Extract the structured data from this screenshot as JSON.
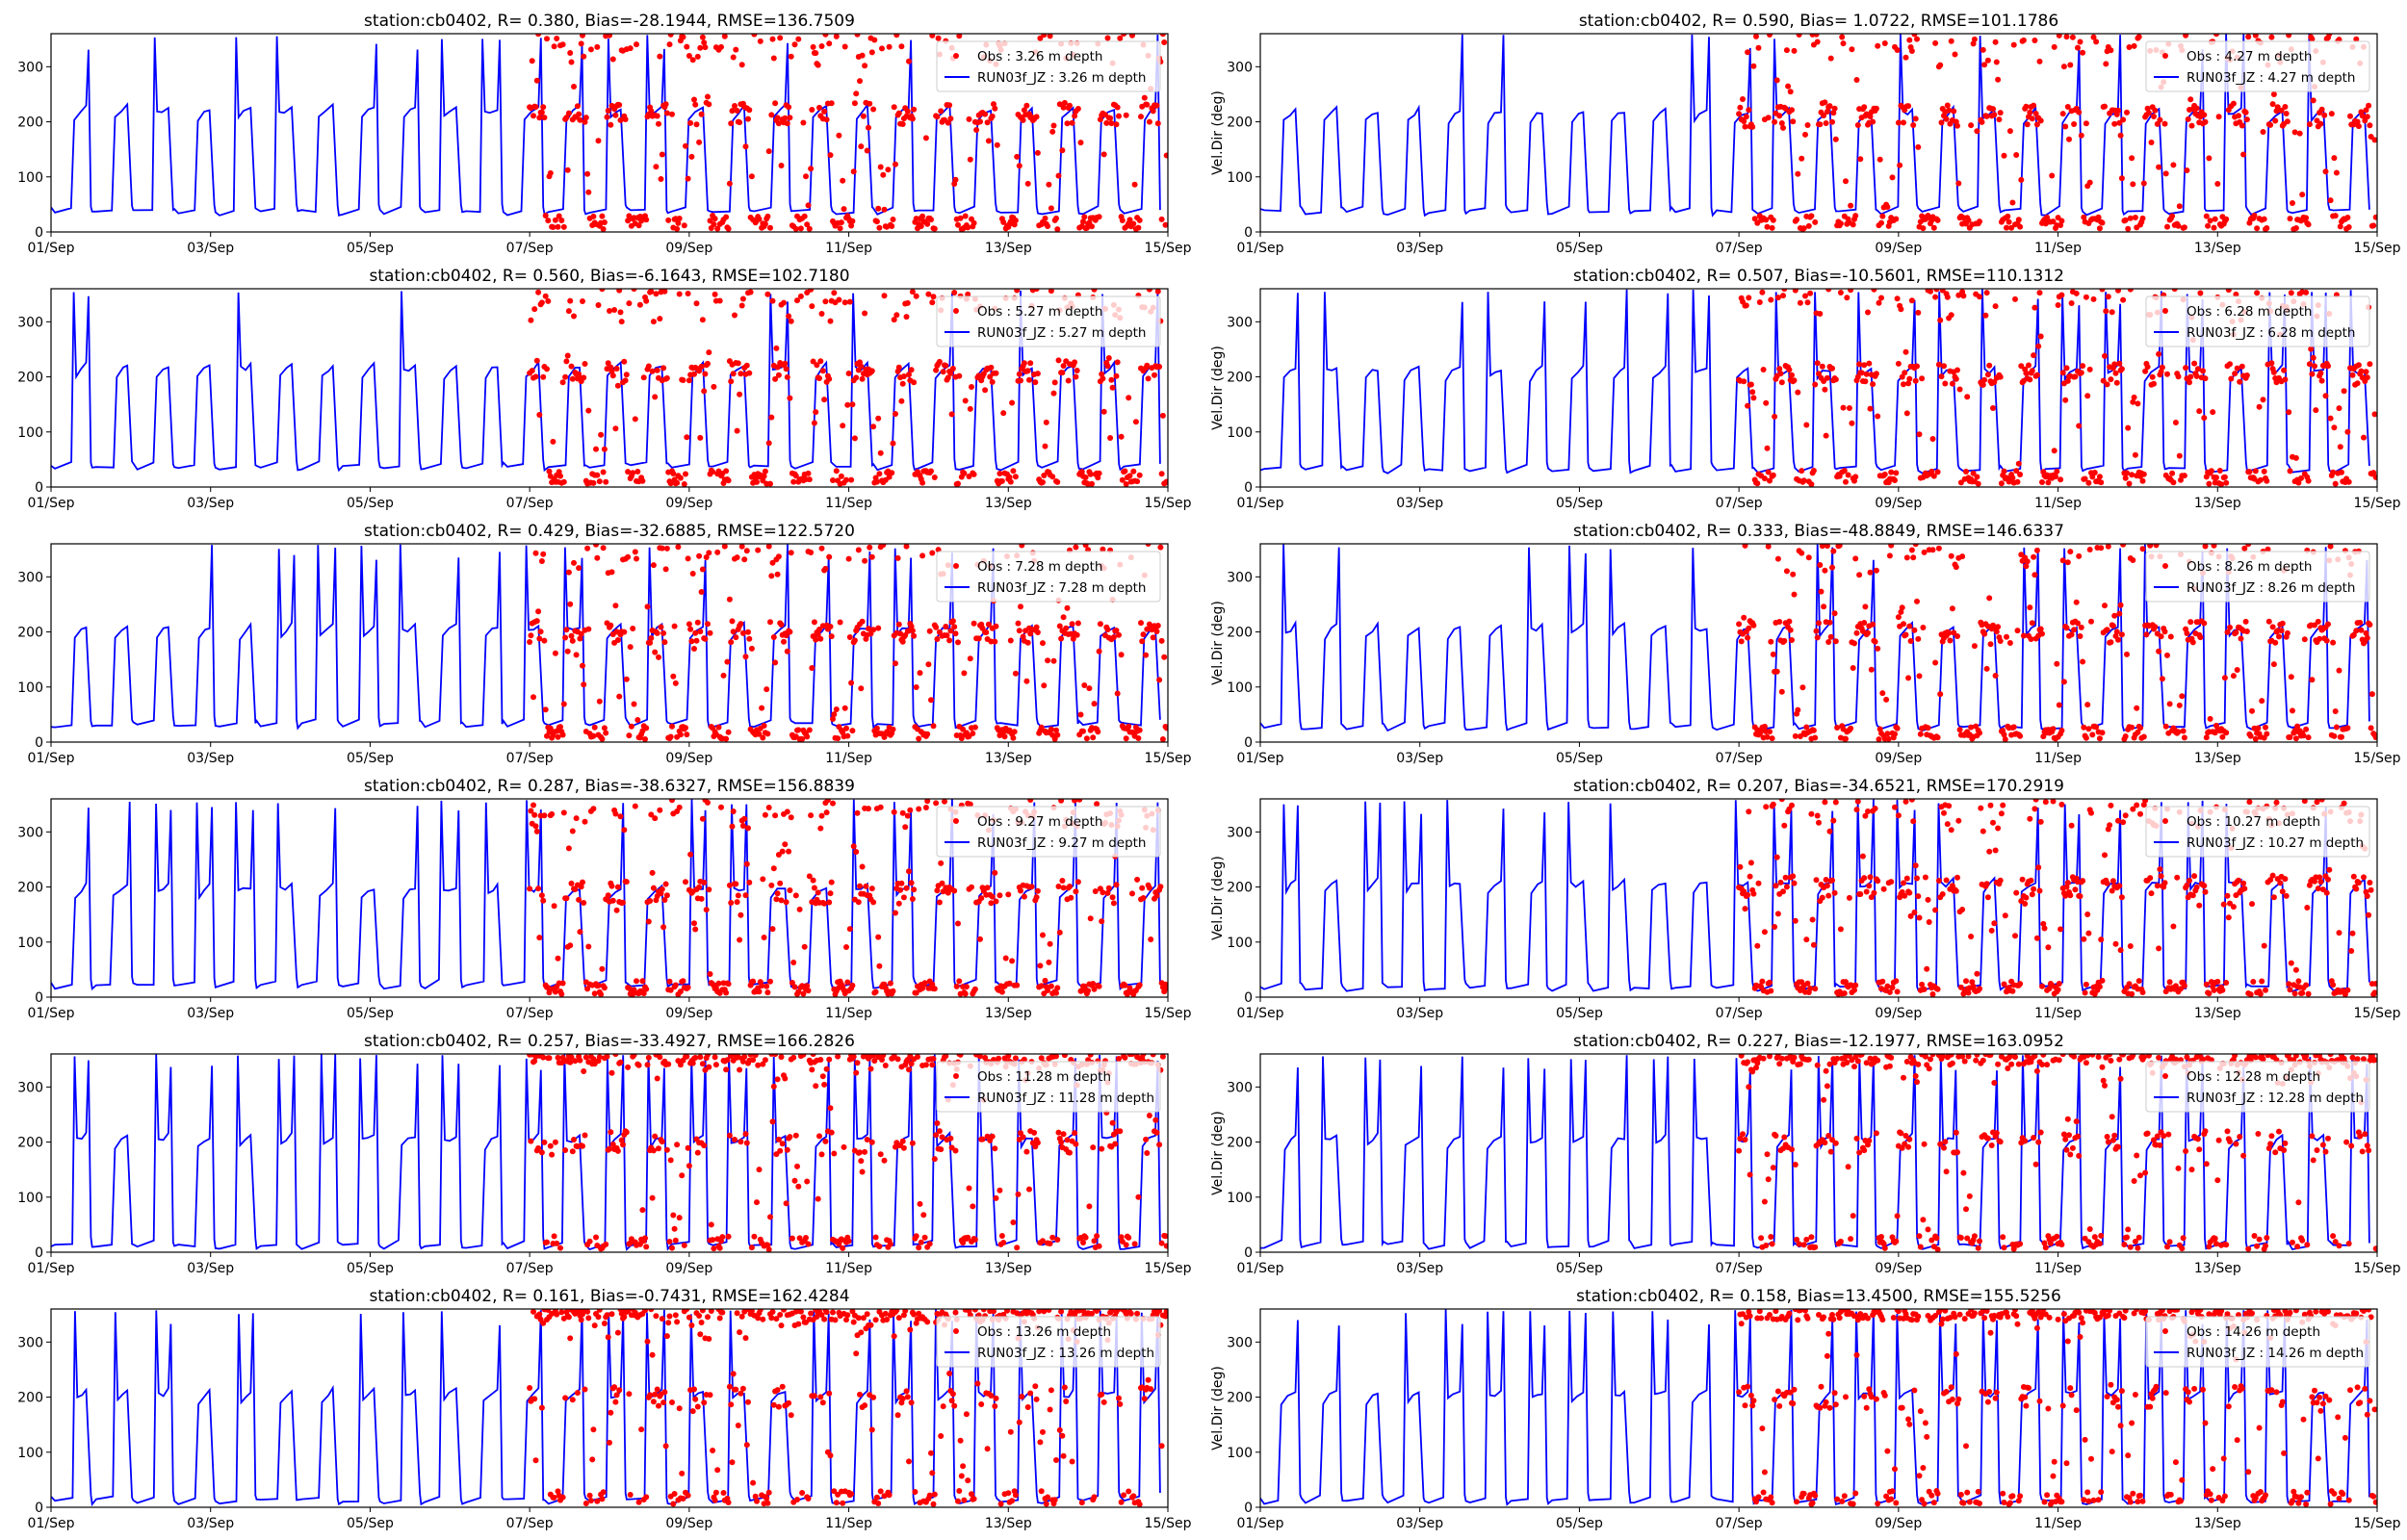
{
  "chart_data": [
    {
      "type": "line+scatter",
      "title": "station:cb0402, R= 0.380, Bias=-28.1944, RMSE=136.7509",
      "ylabel": "",
      "legend": [
        "Obs : 3.26 m depth",
        "RUN03f_JZ : 3.26 m depth"
      ],
      "legend_position": "top-right",
      "xlim": [
        0,
        14
      ],
      "ylim": [
        0,
        360
      ],
      "xticks": [
        0,
        2,
        4,
        6,
        8,
        10,
        12,
        14
      ],
      "xticklabels": [
        "01/Sep",
        "03/Sep",
        "05/Sep",
        "07/Sep",
        "09/Sep",
        "11/Sep",
        "13/Sep",
        "15/Sep"
      ],
      "yticks": [
        0,
        100,
        200,
        300
      ],
      "model_low": 30,
      "model_high": 215,
      "obs_start_day": 6.0,
      "series": [
        {
          "name": "Obs",
          "kind": "scatter",
          "color": "#ff0000"
        },
        {
          "name": "RUN03f_JZ",
          "kind": "line",
          "color": "#0000ff"
        }
      ]
    },
    {
      "type": "line+scatter",
      "title": "station:cb0402, R= 0.590, Bias= 1.0722, RMSE=101.1786",
      "ylabel": "Vel.Dir (deg)",
      "legend": [
        "Obs : 4.27 m depth",
        "RUN03f_JZ : 4.27 m depth"
      ],
      "legend_position": "top-right",
      "xlim": [
        0,
        14
      ],
      "ylim": [
        0,
        360
      ],
      "xticks": [
        0,
        2,
        4,
        6,
        8,
        10,
        12,
        14
      ],
      "xticklabels": [
        "01/Sep",
        "03/Sep",
        "05/Sep",
        "07/Sep",
        "09/Sep",
        "11/Sep",
        "13/Sep",
        "15/Sep"
      ],
      "yticks": [
        0,
        100,
        200,
        300
      ],
      "model_low": 30,
      "model_high": 210,
      "obs_start_day": 6.0,
      "series": [
        {
          "name": "Obs",
          "kind": "scatter",
          "color": "#ff0000"
        },
        {
          "name": "RUN03f_JZ",
          "kind": "line",
          "color": "#0000ff"
        }
      ]
    },
    {
      "type": "line+scatter",
      "title": "station:cb0402, R= 0.560, Bias=-6.1643, RMSE=102.7180",
      "ylabel": "",
      "legend": [
        "Obs : 5.27 m depth",
        "RUN03f_JZ : 5.27 m depth"
      ],
      "legend_position": "top-right",
      "xlim": [
        0,
        14
      ],
      "ylim": [
        0,
        360
      ],
      "xticks": [
        0,
        2,
        4,
        6,
        8,
        10,
        12,
        14
      ],
      "xticklabels": [
        "01/Sep",
        "03/Sep",
        "05/Sep",
        "07/Sep",
        "09/Sep",
        "11/Sep",
        "13/Sep",
        "15/Sep"
      ],
      "yticks": [
        0,
        100,
        200,
        300
      ],
      "model_low": 30,
      "model_high": 210,
      "obs_start_day": 6.0,
      "series": [
        {
          "name": "Obs",
          "kind": "scatter",
          "color": "#ff0000"
        },
        {
          "name": "RUN03f_JZ",
          "kind": "line",
          "color": "#0000ff"
        }
      ]
    },
    {
      "type": "line+scatter",
      "title": "station:cb0402, R= 0.507, Bias=-10.5601, RMSE=110.1312",
      "ylabel": "Vel.Dir (deg)",
      "legend": [
        "Obs : 6.28 m depth",
        "RUN03f_JZ : 6.28 m depth"
      ],
      "legend_position": "top-right",
      "xlim": [
        0,
        14
      ],
      "ylim": [
        0,
        360
      ],
      "xticks": [
        0,
        2,
        4,
        6,
        8,
        10,
        12,
        14
      ],
      "xticklabels": [
        "01/Sep",
        "03/Sep",
        "05/Sep",
        "07/Sep",
        "09/Sep",
        "11/Sep",
        "13/Sep",
        "15/Sep"
      ],
      "yticks": [
        0,
        100,
        200,
        300
      ],
      "model_low": 25,
      "model_high": 205,
      "obs_start_day": 6.0,
      "series": [
        {
          "name": "Obs",
          "kind": "scatter",
          "color": "#ff0000"
        },
        {
          "name": "RUN03f_JZ",
          "kind": "line",
          "color": "#0000ff"
        }
      ]
    },
    {
      "type": "line+scatter",
      "title": "station:cb0402, R= 0.429, Bias=-32.6885, RMSE=122.5720",
      "ylabel": "",
      "legend": [
        "Obs : 7.28 m depth",
        "RUN03f_JZ : 7.28 m depth"
      ],
      "legend_position": "top-right",
      "xlim": [
        0,
        14
      ],
      "ylim": [
        0,
        360
      ],
      "xticks": [
        0,
        2,
        4,
        6,
        8,
        10,
        12,
        14
      ],
      "xticklabels": [
        "01/Sep",
        "03/Sep",
        "05/Sep",
        "07/Sep",
        "09/Sep",
        "11/Sep",
        "13/Sep",
        "15/Sep"
      ],
      "yticks": [
        0,
        100,
        200,
        300
      ],
      "model_low": 25,
      "model_high": 200,
      "obs_start_day": 6.0,
      "series": [
        {
          "name": "Obs",
          "kind": "scatter",
          "color": "#ff0000"
        },
        {
          "name": "RUN03f_JZ",
          "kind": "line",
          "color": "#0000ff"
        }
      ]
    },
    {
      "type": "line+scatter",
      "title": "station:cb0402, R= 0.333, Bias=-48.8849, RMSE=146.6337",
      "ylabel": "Vel.Dir (deg)",
      "legend": [
        "Obs : 8.26 m depth",
        "RUN03f_JZ : 8.26 m depth"
      ],
      "legend_position": "top-right",
      "xlim": [
        0,
        14
      ],
      "ylim": [
        0,
        360
      ],
      "xticks": [
        0,
        2,
        4,
        6,
        8,
        10,
        12,
        14
      ],
      "xticklabels": [
        "01/Sep",
        "03/Sep",
        "05/Sep",
        "07/Sep",
        "09/Sep",
        "11/Sep",
        "13/Sep",
        "15/Sep"
      ],
      "yticks": [
        0,
        100,
        200,
        300
      ],
      "model_low": 20,
      "model_high": 200,
      "obs_start_day": 6.0,
      "series": [
        {
          "name": "Obs",
          "kind": "scatter",
          "color": "#ff0000"
        },
        {
          "name": "RUN03f_JZ",
          "kind": "line",
          "color": "#0000ff"
        }
      ]
    },
    {
      "type": "line+scatter",
      "title": "station:cb0402, R= 0.287, Bias=-38.6327, RMSE=156.8839",
      "ylabel": "",
      "legend": [
        "Obs : 9.27 m depth",
        "RUN03f_JZ : 9.27 m depth"
      ],
      "legend_position": "top-right",
      "xlim": [
        0,
        14
      ],
      "ylim": [
        0,
        360
      ],
      "xticks": [
        0,
        2,
        4,
        6,
        8,
        10,
        12,
        14
      ],
      "xticklabels": [
        "01/Sep",
        "03/Sep",
        "05/Sep",
        "07/Sep",
        "09/Sep",
        "11/Sep",
        "13/Sep",
        "15/Sep"
      ],
      "yticks": [
        0,
        100,
        200,
        300
      ],
      "model_low": 15,
      "model_high": 190,
      "obs_start_day": 6.0,
      "series": [
        {
          "name": "Obs",
          "kind": "scatter",
          "color": "#ff0000"
        },
        {
          "name": "RUN03f_JZ",
          "kind": "line",
          "color": "#0000ff"
        }
      ]
    },
    {
      "type": "line+scatter",
      "title": "station:cb0402, R= 0.207, Bias=-34.6521, RMSE=170.2919",
      "ylabel": "Vel.Dir (deg)",
      "legend": [
        "Obs : 10.27 m depth",
        "RUN03f_JZ : 10.27 m depth"
      ],
      "legend_position": "top-right",
      "xlim": [
        0,
        14
      ],
      "ylim": [
        0,
        360
      ],
      "xticks": [
        0,
        2,
        4,
        6,
        8,
        10,
        12,
        14
      ],
      "xticklabels": [
        "01/Sep",
        "03/Sep",
        "05/Sep",
        "07/Sep",
        "09/Sep",
        "11/Sep",
        "13/Sep",
        "15/Sep"
      ],
      "yticks": [
        0,
        100,
        200,
        300
      ],
      "model_low": 10,
      "model_high": 200,
      "obs_start_day": 6.0,
      "series": [
        {
          "name": "Obs",
          "kind": "scatter",
          "color": "#ff0000"
        },
        {
          "name": "RUN03f_JZ",
          "kind": "line",
          "color": "#0000ff"
        }
      ]
    },
    {
      "type": "line+scatter",
      "title": "station:cb0402, R= 0.257, Bias=-33.4927, RMSE=166.2826",
      "ylabel": "",
      "legend": [
        "Obs : 11.28 m depth",
        "RUN03f_JZ : 11.28 m depth"
      ],
      "legend_position": "top-right",
      "xlim": [
        0,
        14
      ],
      "ylim": [
        0,
        360
      ],
      "xticks": [
        0,
        2,
        4,
        6,
        8,
        10,
        12,
        14
      ],
      "xticklabels": [
        "01/Sep",
        "03/Sep",
        "05/Sep",
        "07/Sep",
        "09/Sep",
        "11/Sep",
        "13/Sep",
        "15/Sep"
      ],
      "yticks": [
        0,
        100,
        200,
        300
      ],
      "model_low": 5,
      "model_high": 200,
      "obs_start_day": 6.0,
      "series": [
        {
          "name": "Obs",
          "kind": "scatter",
          "color": "#ff0000"
        },
        {
          "name": "RUN03f_JZ",
          "kind": "line",
          "color": "#0000ff"
        }
      ]
    },
    {
      "type": "line+scatter",
      "title": "station:cb0402, R= 0.227, Bias=-12.1977, RMSE=163.0952",
      "ylabel": "Vel.Dir (deg)",
      "legend": [
        "Obs : 12.28 m depth",
        "RUN03f_JZ : 12.28 m depth"
      ],
      "legend_position": "top-right",
      "xlim": [
        0,
        14
      ],
      "ylim": [
        0,
        360
      ],
      "xticks": [
        0,
        2,
        4,
        6,
        8,
        10,
        12,
        14
      ],
      "xticklabels": [
        "01/Sep",
        "03/Sep",
        "05/Sep",
        "07/Sep",
        "09/Sep",
        "11/Sep",
        "13/Sep",
        "15/Sep"
      ],
      "yticks": [
        0,
        100,
        200,
        300
      ],
      "model_low": 5,
      "model_high": 200,
      "obs_start_day": 6.0,
      "series": [
        {
          "name": "Obs",
          "kind": "scatter",
          "color": "#ff0000"
        },
        {
          "name": "RUN03f_JZ",
          "kind": "line",
          "color": "#0000ff"
        }
      ]
    },
    {
      "type": "line+scatter",
      "title": "station:cb0402, R= 0.161, Bias=-0.7431, RMSE=162.4284",
      "ylabel": "",
      "legend": [
        "Obs : 13.26 m depth",
        "RUN03f_JZ : 13.26 m depth"
      ],
      "legend_position": "top-right",
      "xlim": [
        0,
        14
      ],
      "ylim": [
        0,
        360
      ],
      "xticks": [
        0,
        2,
        4,
        6,
        8,
        10,
        12,
        14
      ],
      "xticklabels": [
        "01/Sep",
        "03/Sep",
        "05/Sep",
        "07/Sep",
        "09/Sep",
        "11/Sep",
        "13/Sep",
        "15/Sep"
      ],
      "yticks": [
        0,
        100,
        200,
        300
      ],
      "model_low": 5,
      "model_high": 200,
      "obs_start_day": 6.0,
      "series": [
        {
          "name": "Obs",
          "kind": "scatter",
          "color": "#ff0000"
        },
        {
          "name": "RUN03f_JZ",
          "kind": "line",
          "color": "#0000ff"
        }
      ]
    },
    {
      "type": "line+scatter",
      "title": "station:cb0402, R= 0.158, Bias=13.4500, RMSE=155.5256",
      "ylabel": "Vel.Dir (deg)",
      "legend": [
        "Obs : 14.26 m depth",
        "RUN03f_JZ : 14.26 m depth"
      ],
      "legend_position": "top-right",
      "xlim": [
        0,
        14
      ],
      "ylim": [
        0,
        360
      ],
      "xticks": [
        0,
        2,
        4,
        6,
        8,
        10,
        12,
        14
      ],
      "xticklabels": [
        "01/Sep",
        "03/Sep",
        "05/Sep",
        "07/Sep",
        "09/Sep",
        "11/Sep",
        "13/Sep",
        "15/Sep"
      ],
      "yticks": [
        0,
        100,
        200,
        300
      ],
      "model_low": 5,
      "model_high": 200,
      "obs_start_day": 6.0,
      "series": [
        {
          "name": "Obs",
          "kind": "scatter",
          "color": "#ff0000"
        },
        {
          "name": "RUN03f_JZ",
          "kind": "line",
          "color": "#0000ff"
        }
      ]
    }
  ]
}
